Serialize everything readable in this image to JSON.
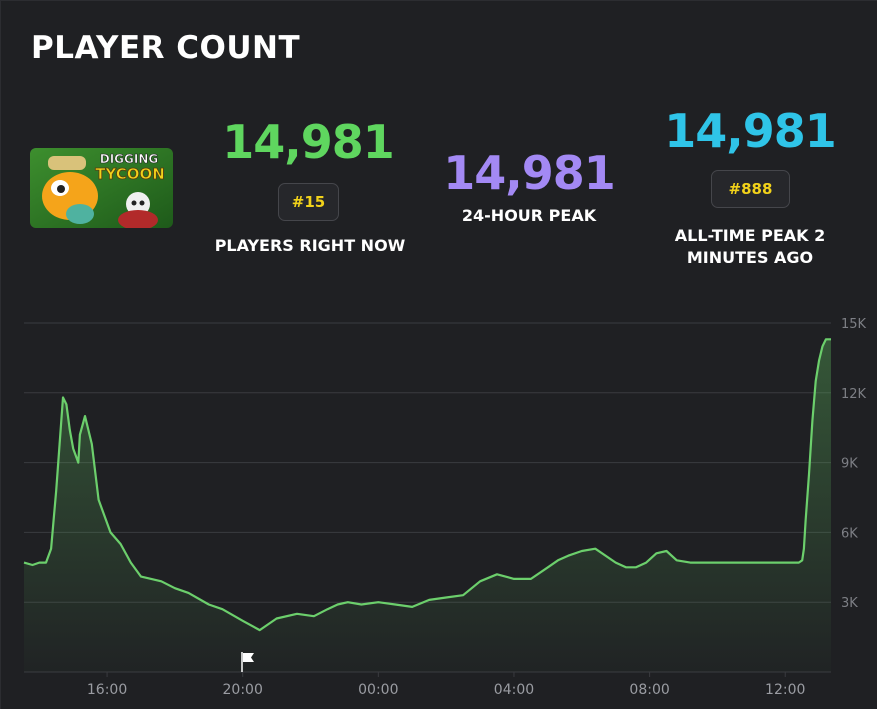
{
  "header": {
    "title": "PLAYER COUNT"
  },
  "game": {
    "thumb_line1": "DIGGING",
    "thumb_line2": "TYCOON"
  },
  "stats": {
    "current": {
      "value": "14,981",
      "rank": "#15",
      "label": "PLAYERS RIGHT NOW",
      "color": "#5fd65f"
    },
    "peak24": {
      "value": "14,981",
      "label": "24-HOUR PEAK",
      "color": "#a389f4"
    },
    "alltime": {
      "value": "14,981",
      "rank": "#888",
      "label_line1": "ALL-TIME PEAK 2",
      "label_line2": "MINUTES AGO",
      "color": "#2fc4e8"
    }
  },
  "chart_data": {
    "type": "area",
    "ylim": [
      0,
      15000
    ],
    "yticks": [
      3000,
      6000,
      9000,
      12000,
      15000
    ],
    "ytick_labels": [
      "3K",
      "6K",
      "9K",
      "12K",
      "15K"
    ],
    "xlim": [
      -10.45,
      13.35
    ],
    "xticks": [
      -8,
      -4,
      0,
      4,
      8,
      12
    ],
    "xtick_labels": [
      "16:00",
      "20:00",
      "00:00",
      "04:00",
      "08:00",
      "12:00"
    ],
    "grid": true,
    "line_color": "#6ccf6c",
    "x": [
      -10.45,
      -10.2,
      -10.0,
      -9.8,
      -9.65,
      -9.5,
      -9.3,
      -9.2,
      -9.1,
      -9.0,
      -8.9,
      -8.85,
      -8.8,
      -8.65,
      -8.45,
      -8.25,
      -7.9,
      -7.6,
      -7.3,
      -7.0,
      -6.7,
      -6.4,
      -6.0,
      -5.6,
      -5.0,
      -4.6,
      -4.0,
      -3.5,
      -3.0,
      -2.4,
      -1.9,
      -1.5,
      -1.2,
      -0.9,
      -0.5,
      0,
      0.5,
      1.0,
      1.5,
      2.0,
      2.5,
      3.0,
      3.5,
      4.0,
      4.5,
      5.0,
      5.3,
      5.6,
      6.0,
      6.4,
      7.0,
      7.3,
      7.6,
      7.9,
      8.2,
      8.5,
      8.8,
      9.2,
      9.6,
      10.0,
      10.4,
      10.7,
      11.0,
      11.2,
      11.4,
      11.6,
      11.8,
      12.0,
      12.2,
      12.4,
      12.5,
      12.55,
      12.6,
      12.7,
      12.8,
      12.9,
      13.0,
      13.1,
      13.2,
      13.35
    ],
    "y": [
      4700,
      4600,
      4700,
      4700,
      5300,
      7800,
      11800,
      11500,
      10400,
      9600,
      9200,
      9000,
      10200,
      11000,
      9800,
      7400,
      6000,
      5500,
      4700,
      4100,
      4000,
      3900,
      3600,
      3400,
      2900,
      2700,
      2200,
      1800,
      2300,
      2500,
      2400,
      2700,
      2900,
      3000,
      2900,
      3000,
      2900,
      2800,
      3100,
      3200,
      3300,
      3900,
      4200,
      4000,
      4000,
      4500,
      4800,
      5000,
      5200,
      5300,
      4700,
      4500,
      4500,
      4700,
      5100,
      5200,
      4800,
      4700,
      4700,
      4700,
      4700,
      4700,
      4700,
      4700,
      4700,
      4700,
      4700,
      4700,
      4700,
      4700,
      4800,
      5300,
      6500,
      8500,
      10800,
      12500,
      13400,
      14000,
      14300,
      14300
    ]
  }
}
